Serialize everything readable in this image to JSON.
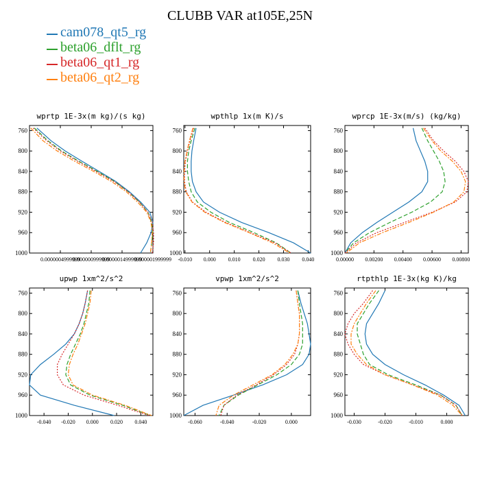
{
  "title": "CLUBB VAR at105E,25N",
  "colors": {
    "cam078_qt5_rg": "#1f77b4",
    "beta06_dflt_rg": "#2ca02c",
    "beta06_qt1_rg": "#d62728",
    "beta06_qt2_rg": "#ff7f0e"
  },
  "legend": [
    "cam078_qt5_rg",
    "beta06_dflt_rg",
    "beta06_qt1_rg",
    "beta06_qt2_rg"
  ],
  "chart_data": [
    {
      "type": "line",
      "title": "wprtp  1E-3x(m kg)/(s kg)",
      "xlim": [
        0,
        2e-06
      ],
      "ylim": [
        1000,
        750
      ],
      "xticks": [
        5e-07,
        1e-06,
        1.5e-06,
        2e-06
      ],
      "xticklabels": [
        "0.0000004999999",
        "0.000000999999",
        "0.0000014999999",
        "0.000001999999"
      ],
      "yticks": [
        760,
        800,
        840,
        880,
        920,
        960,
        1000
      ],
      "series": [
        {
          "name": "cam078_qt5_rg",
          "style": "solid",
          "y": [
            755,
            780,
            800,
            820,
            840,
            860,
            880,
            900,
            920,
            940,
            960,
            980,
            1000
          ],
          "x": [
            1.2e-07,
            3.5e-07,
            5.8e-07,
            8.5e-07,
            1.13e-06,
            1.4e-06,
            1.62e-06,
            1.8e-06,
            1.95e-06,
            2e-06,
            1.97e-06,
            1.9e-06,
            1.8e-06
          ]
        },
        {
          "name": "beta06_dflt_rg",
          "style": "dash",
          "y": [
            755,
            780,
            800,
            820,
            840,
            860,
            880,
            900,
            920,
            940,
            960,
            980,
            1000
          ],
          "x": [
            8e-08,
            3e-07,
            5.2e-07,
            8e-07,
            1.1e-06,
            1.38e-06,
            1.6e-06,
            1.78e-06,
            1.92e-06,
            1.98e-06,
            2e-06,
            1.98e-06,
            1.96e-06
          ]
        },
        {
          "name": "beta06_qt1_rg",
          "style": "dot",
          "y": [
            755,
            780,
            800,
            820,
            840,
            860,
            880,
            900,
            920,
            940,
            960,
            980,
            1000
          ],
          "x": [
            6e-08,
            2.8e-07,
            5e-07,
            7.8e-07,
            1.08e-06,
            1.37e-06,
            1.6e-06,
            1.78e-06,
            1.92e-06,
            1.99e-06,
            2.01e-06,
            2.01e-06,
            1.99e-06
          ]
        },
        {
          "name": "beta06_qt2_rg",
          "style": "dashdot",
          "y": [
            755,
            780,
            800,
            820,
            840,
            860,
            880,
            900,
            920,
            940,
            960,
            980,
            1000
          ],
          "x": [
            2e-08,
            2.2e-07,
            4.5e-07,
            7.3e-07,
            1.04e-06,
            1.33e-06,
            1.57e-06,
            1.75e-06,
            1.9e-06,
            1.97e-06,
            1.99e-06,
            1.98e-06,
            1.96e-06
          ]
        }
      ]
    },
    {
      "type": "line",
      "title": "wpthlp  1x(m K)/s",
      "xlim": [
        -0.0105,
        0.041
      ],
      "ylim": [
        1000,
        750
      ],
      "xticks": [
        -0.01,
        0,
        0.01,
        0.02,
        0.03,
        0.04
      ],
      "xticklabels": [
        "-0.010",
        "0.000",
        "0.010",
        "0.020",
        "0.030",
        "0.040"
      ],
      "yticks": [
        760,
        800,
        840,
        880,
        920,
        960,
        1000
      ],
      "series": [
        {
          "name": "cam078_qt5_rg",
          "style": "solid",
          "y": [
            755,
            780,
            800,
            820,
            840,
            860,
            880,
            900,
            920,
            940,
            960,
            980,
            1000
          ],
          "x": [
            -0.0055,
            -0.0065,
            -0.0072,
            -0.0075,
            -0.0075,
            -0.007,
            -0.0055,
            -0.0025,
            0.004,
            0.013,
            0.024,
            0.034,
            0.041
          ]
        },
        {
          "name": "beta06_dflt_rg",
          "style": "dash",
          "y": [
            755,
            780,
            800,
            820,
            840,
            860,
            880,
            900,
            920,
            940,
            960,
            980,
            1000
          ],
          "x": [
            -0.006,
            -0.0075,
            -0.0085,
            -0.009,
            -0.009,
            -0.0085,
            -0.0075,
            -0.005,
            0.0005,
            0.008,
            0.018,
            0.027,
            0.033
          ]
        },
        {
          "name": "beta06_qt1_rg",
          "style": "dot",
          "y": [
            755,
            780,
            800,
            820,
            840,
            860,
            880,
            900,
            920,
            940,
            960,
            980,
            1000
          ],
          "x": [
            -0.0065,
            -0.008,
            -0.009,
            -0.0098,
            -0.0102,
            -0.0102,
            -0.0095,
            -0.007,
            -0.0015,
            0.0065,
            0.0165,
            0.0265,
            0.033
          ]
        },
        {
          "name": "beta06_qt2_rg",
          "style": "dashdot",
          "y": [
            755,
            780,
            800,
            820,
            840,
            860,
            880,
            900,
            920,
            940,
            960,
            980,
            1000
          ],
          "x": [
            -0.0068,
            -0.0082,
            -0.0092,
            -0.01,
            -0.0104,
            -0.0104,
            -0.0097,
            -0.0072,
            -0.002,
            0.006,
            0.016,
            0.0255,
            0.0325
          ]
        }
      ]
    },
    {
      "type": "line",
      "title": "wprcp  1E-3x(m/s) (kg/kg)",
      "xlim": [
        0,
        0.0085
      ],
      "ylim": [
        1000,
        750
      ],
      "xticks": [
        0,
        0.002,
        0.004,
        0.006,
        0.008
      ],
      "xticklabels": [
        "0.00000",
        "0.00200",
        "0.00400",
        "0.00600",
        "0.00800"
      ],
      "yticks": [
        760,
        800,
        840,
        880,
        920,
        960,
        1000
      ],
      "series": [
        {
          "name": "cam078_qt5_rg",
          "style": "solid",
          "y": [
            755,
            780,
            800,
            820,
            840,
            860,
            880,
            900,
            920,
            940,
            960,
            980,
            1000
          ],
          "x": [
            0.0047,
            0.0049,
            0.0052,
            0.0055,
            0.0057,
            0.0057,
            0.0053,
            0.0044,
            0.0033,
            0.0022,
            0.0012,
            0.0004,
            0.0
          ]
        },
        {
          "name": "beta06_dflt_rg",
          "style": "dash",
          "y": [
            755,
            780,
            800,
            820,
            840,
            860,
            880,
            900,
            920,
            940,
            960,
            980,
            1000
          ],
          "x": [
            0.0053,
            0.0057,
            0.0061,
            0.0065,
            0.0068,
            0.0069,
            0.0067,
            0.0059,
            0.0046,
            0.0031,
            0.0017,
            0.0006,
            0.0
          ]
        },
        {
          "name": "beta06_qt1_rg",
          "style": "dot",
          "y": [
            755,
            780,
            800,
            820,
            840,
            860,
            880,
            900,
            920,
            940,
            960,
            980,
            1000
          ],
          "x": [
            0.0055,
            0.0061,
            0.0068,
            0.0076,
            0.0082,
            0.0085,
            0.0084,
            0.0076,
            0.006,
            0.0041,
            0.0022,
            0.0008,
            0.0
          ]
        },
        {
          "name": "beta06_qt2_rg",
          "style": "dashdot",
          "y": [
            755,
            780,
            800,
            820,
            840,
            860,
            880,
            900,
            920,
            940,
            960,
            980,
            1000
          ],
          "x": [
            0.0054,
            0.006,
            0.0066,
            0.0074,
            0.008,
            0.0083,
            0.0082,
            0.0075,
            0.0061,
            0.0044,
            0.0026,
            0.001,
            0.0001
          ]
        }
      ]
    },
    {
      "type": "line",
      "title": "upwp  1xm^2/s^2",
      "xlim": [
        -0.052,
        0.05
      ],
      "ylim": [
        1000,
        750
      ],
      "xticks": [
        -0.04,
        -0.02,
        0,
        0.02,
        0.04
      ],
      "xticklabels": [
        "-0.040",
        "-0.020",
        "0.000",
        "0.020",
        "0.040"
      ],
      "yticks": [
        760,
        800,
        840,
        880,
        920,
        960,
        1000
      ],
      "series": [
        {
          "name": "cam078_qt5_rg",
          "style": "solid",
          "y": [
            755,
            780,
            800,
            820,
            840,
            860,
            880,
            900,
            920,
            940,
            960,
            980,
            1000
          ],
          "x": [
            -0.004,
            -0.006,
            -0.008,
            -0.011,
            -0.015,
            -0.022,
            -0.032,
            -0.043,
            -0.051,
            -0.052,
            -0.043,
            -0.015,
            0.018
          ]
        },
        {
          "name": "beta06_dflt_rg",
          "style": "dash",
          "y": [
            755,
            780,
            800,
            820,
            840,
            860,
            880,
            900,
            920,
            940,
            960,
            980,
            1000
          ],
          "x": [
            -0.002,
            -0.003,
            -0.005,
            -0.007,
            -0.01,
            -0.014,
            -0.018,
            -0.021,
            -0.022,
            -0.018,
            -0.002,
            0.025,
            0.048
          ]
        },
        {
          "name": "beta06_qt1_rg",
          "style": "dot",
          "y": [
            755,
            780,
            800,
            820,
            840,
            860,
            880,
            900,
            920,
            940,
            960,
            980,
            1000
          ],
          "x": [
            -0.004,
            -0.006,
            -0.008,
            -0.011,
            -0.015,
            -0.02,
            -0.025,
            -0.029,
            -0.029,
            -0.024,
            -0.007,
            0.021,
            0.047
          ]
        },
        {
          "name": "beta06_qt2_rg",
          "style": "dashdot",
          "y": [
            755,
            780,
            800,
            820,
            840,
            860,
            880,
            900,
            920,
            940,
            960,
            980,
            1000
          ],
          "x": [
            -0.001,
            -0.002,
            -0.004,
            -0.006,
            -0.009,
            -0.012,
            -0.016,
            -0.019,
            -0.02,
            -0.016,
            0.0,
            0.027,
            0.049
          ]
        }
      ]
    },
    {
      "type": "line",
      "title": "vpwp  1xm^2/s^2",
      "xlim": [
        -0.067,
        0.012
      ],
      "ylim": [
        1000,
        750
      ],
      "xticks": [
        -0.06,
        -0.04,
        -0.02,
        0
      ],
      "xticklabels": [
        "-0.060",
        "-0.040",
        "-0.020",
        "0.000"
      ],
      "yticks": [
        760,
        800,
        840,
        880,
        920,
        960,
        1000
      ],
      "series": [
        {
          "name": "cam078_qt5_rg",
          "style": "solid",
          "y": [
            755,
            780,
            800,
            820,
            840,
            860,
            880,
            900,
            920,
            940,
            960,
            980,
            1000
          ],
          "x": [
            0.004,
            0.006,
            0.008,
            0.01,
            0.011,
            0.012,
            0.011,
            0.007,
            -0.003,
            -0.018,
            -0.036,
            -0.055,
            -0.067
          ]
        },
        {
          "name": "beta06_dflt_rg",
          "style": "dash",
          "y": [
            755,
            780,
            800,
            820,
            840,
            860,
            880,
            900,
            920,
            940,
            960,
            980,
            1000
          ],
          "x": [
            0.004,
            0.005,
            0.006,
            0.007,
            0.007,
            0.007,
            0.005,
            0.0,
            -0.009,
            -0.021,
            -0.033,
            -0.042,
            -0.045
          ]
        },
        {
          "name": "beta06_qt1_rg",
          "style": "dot",
          "y": [
            755,
            780,
            800,
            820,
            840,
            860,
            880,
            900,
            920,
            940,
            960,
            980,
            1000
          ],
          "x": [
            0.003,
            0.004,
            0.005,
            0.005,
            0.005,
            0.004,
            0.002,
            -0.003,
            -0.011,
            -0.022,
            -0.034,
            -0.042,
            -0.044
          ]
        },
        {
          "name": "beta06_qt2_rg",
          "style": "dashdot",
          "y": [
            755,
            780,
            800,
            820,
            840,
            860,
            880,
            900,
            920,
            940,
            960,
            980,
            1000
          ],
          "x": [
            0.003,
            0.004,
            0.005,
            0.005,
            0.005,
            0.004,
            0.001,
            -0.004,
            -0.012,
            -0.024,
            -0.036,
            -0.045,
            -0.047
          ]
        }
      ]
    },
    {
      "type": "line",
      "title": "rtpthlp  1E-3x(kg K)/kg",
      "xlim": [
        -0.033,
        0.007
      ],
      "ylim": [
        1000,
        750
      ],
      "xticks": [
        -0.03,
        -0.02,
        -0.01,
        0
      ],
      "xticklabels": [
        "-0.030",
        "-0.020",
        "-0.010",
        "0.000"
      ],
      "yticks": [
        760,
        800,
        840,
        880,
        920,
        960,
        1000
      ],
      "series": [
        {
          "name": "cam078_qt5_rg",
          "style": "solid",
          "y": [
            755,
            780,
            800,
            820,
            840,
            860,
            880,
            900,
            920,
            940,
            960,
            980,
            1000
          ],
          "x": [
            -0.02,
            -0.022,
            -0.024,
            -0.026,
            -0.0265,
            -0.026,
            -0.024,
            -0.02,
            -0.014,
            -0.007,
            -0.001,
            0.004,
            0.006
          ]
        },
        {
          "name": "beta06_dflt_rg",
          "style": "dash",
          "y": [
            755,
            780,
            800,
            820,
            840,
            860,
            880,
            900,
            920,
            940,
            960,
            980,
            1000
          ],
          "x": [
            -0.022,
            -0.025,
            -0.027,
            -0.029,
            -0.029,
            -0.028,
            -0.027,
            -0.025,
            -0.019,
            -0.01,
            -0.002,
            0.003,
            0.005
          ]
        },
        {
          "name": "beta06_qt1_rg",
          "style": "dot",
          "y": [
            755,
            780,
            800,
            820,
            840,
            860,
            880,
            900,
            920,
            940,
            960,
            980,
            1000
          ],
          "x": [
            -0.024,
            -0.027,
            -0.03,
            -0.032,
            -0.033,
            -0.032,
            -0.03,
            -0.027,
            -0.02,
            -0.011,
            -0.002,
            0.003,
            0.005
          ]
        },
        {
          "name": "beta06_qt2_rg",
          "style": "dashdot",
          "y": [
            755,
            780,
            800,
            820,
            840,
            860,
            880,
            900,
            920,
            940,
            960,
            980,
            1000
          ],
          "x": [
            -0.023,
            -0.026,
            -0.028,
            -0.03,
            -0.031,
            -0.031,
            -0.029,
            -0.026,
            -0.02,
            -0.011,
            -0.003,
            0.002,
            0.005
          ]
        }
      ]
    }
  ]
}
